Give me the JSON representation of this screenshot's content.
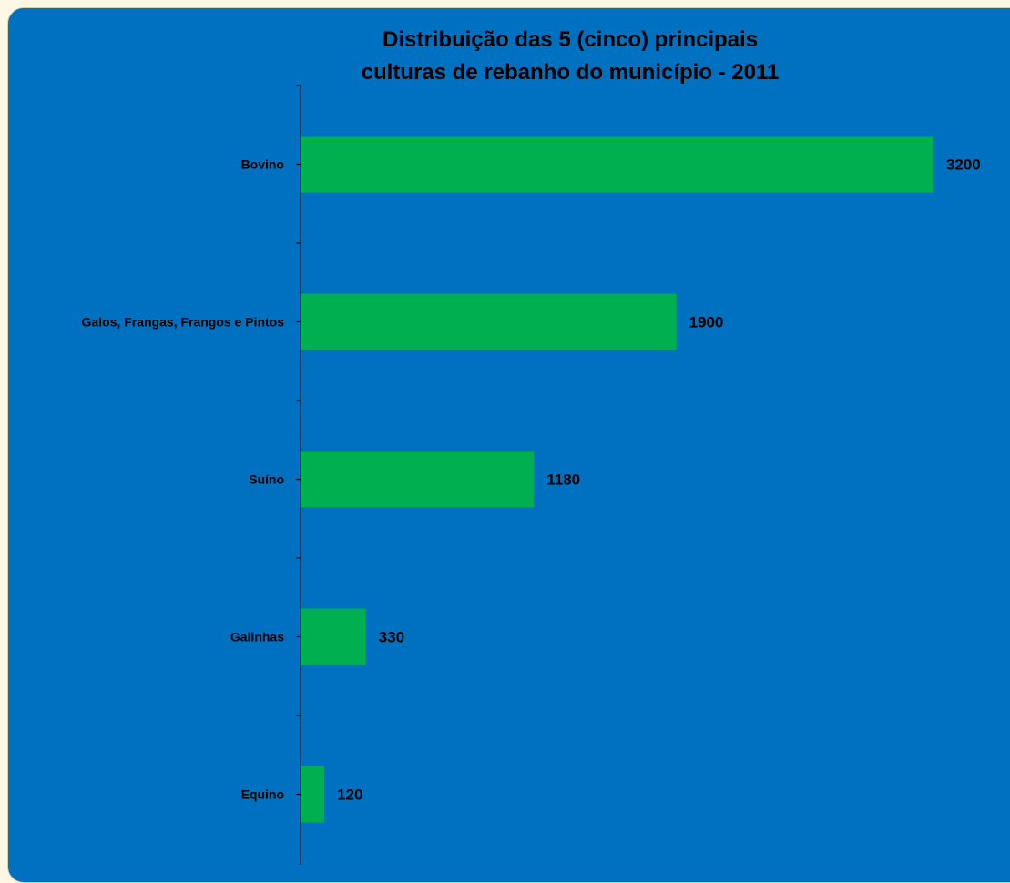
{
  "chart_data": {
    "type": "bar",
    "orientation": "horizontal",
    "title": "Distribuição das 5 (cinco) principais culturas de rebanho do município - 2011",
    "title_lines": [
      "Distribuição das 5 (cinco) principais",
      "culturas de rebanho do município - 2011"
    ],
    "categories": [
      "Bovino",
      "Galos, Frangas, Frangos e Pintos",
      "Suíno",
      "Galinhas",
      "Equino"
    ],
    "values": [
      3200,
      1900,
      1180,
      330,
      120
    ],
    "data_labels": [
      "3200",
      "1900",
      "1180",
      "330",
      "120"
    ],
    "xlim": [
      0,
      3500
    ],
    "xlabel": "",
    "ylabel": "",
    "grid": false,
    "legend": "none",
    "colors": {
      "background": "#0070c0",
      "bar": "#00b050",
      "axis": "#000000",
      "text": "#000000",
      "outer": "#fdf7e4"
    }
  }
}
